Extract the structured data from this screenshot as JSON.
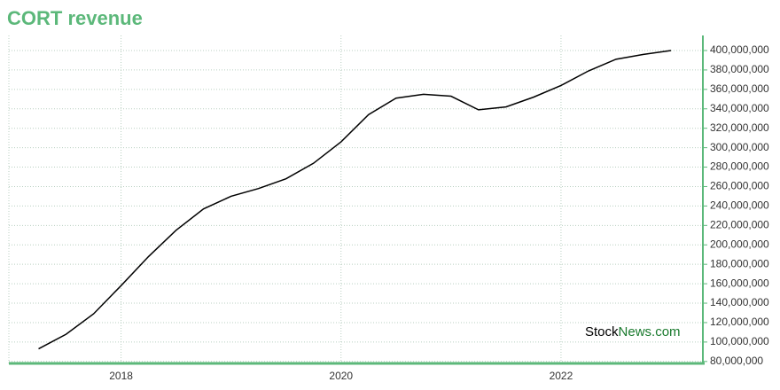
{
  "chart_data": {
    "type": "line",
    "title": "CORT revenue",
    "x": [
      2017.25,
      2017.5,
      2017.75,
      2018.0,
      2018.25,
      2018.5,
      2018.75,
      2019.0,
      2019.25,
      2019.5,
      2019.75,
      2020.0,
      2020.25,
      2020.5,
      2020.75,
      2021.0,
      2021.25,
      2021.5,
      2021.75,
      2022.0,
      2022.25,
      2022.5,
      2022.75,
      2023.0
    ],
    "series": [
      {
        "color": "#000000",
        "values": [
          93000000,
          108000000,
          129000000,
          158000000,
          188000000,
          215000000,
          237000000,
          250000000,
          258000000,
          268000000,
          284000000,
          306000000,
          334000000,
          351000000,
          355000000,
          353000000,
          339000000,
          342000000,
          352000000,
          364000000,
          379000000,
          391000000,
          396000000,
          400000000
        ]
      }
    ],
    "xlim": [
      2016.98,
      2023.29
    ],
    "xticks": [
      2018,
      2020,
      2022
    ],
    "ylim": [
      78000000,
      415500000
    ],
    "yticks": [
      {
        "value": 80000000,
        "label": "80,000,000"
      },
      {
        "value": 100000000,
        "label": "100,000,000"
      },
      {
        "value": 120000000,
        "label": "120,000,000"
      },
      {
        "value": 140000000,
        "label": "140,000,000"
      },
      {
        "value": 160000000,
        "label": "160,000,000"
      },
      {
        "value": 180000000,
        "label": "180,000,000"
      },
      {
        "value": 200000000,
        "label": "200,000,000"
      },
      {
        "value": 220000000,
        "label": "220,000,000"
      },
      {
        "value": 240000000,
        "label": "240,000,000"
      },
      {
        "value": 260000000,
        "label": "260,000,000"
      },
      {
        "value": 280000000,
        "label": "280,000,000"
      },
      {
        "value": 300000000,
        "label": "300,000,000"
      },
      {
        "value": 320000000,
        "label": "320,000,000"
      },
      {
        "value": 340000000,
        "label": "340,000,000"
      },
      {
        "value": 360000000,
        "label": "360,000,000"
      },
      {
        "value": 380000000,
        "label": "380,000,000"
      },
      {
        "value": 400000000,
        "label": "400,000,000"
      }
    ],
    "grid": true,
    "watermark": [
      "Stock",
      "News.com"
    ]
  }
}
